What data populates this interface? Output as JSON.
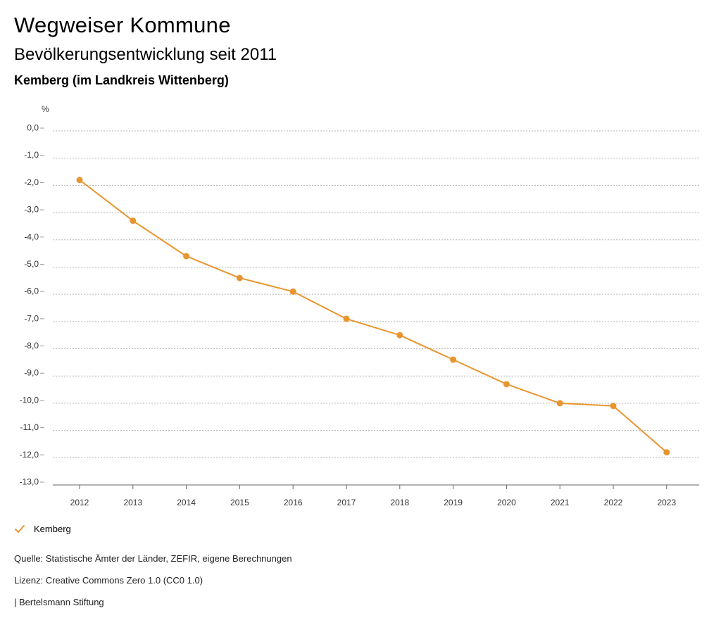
{
  "header": {
    "title": "Wegweiser Kommune",
    "subtitle": "Bevölkerungsentwicklung seit 2011",
    "region": "Kemberg (im Landkreis Wittenberg)"
  },
  "legend": {
    "items": [
      {
        "label": "Kemberg",
        "color": "#e8952f"
      }
    ]
  },
  "footer": {
    "source": "Quelle: Statistische Ämter der Länder, ZEFIR, eigene Berechnungen",
    "license": "Lizenz: Creative Commons Zero 1.0 (CC0 1.0)",
    "publisher": "| Bertelsmann Stiftung"
  },
  "chart_data": {
    "type": "line",
    "title": "",
    "xlabel": "",
    "ylabel": "%",
    "x": [
      "2012",
      "2013",
      "2014",
      "2015",
      "2016",
      "2017",
      "2018",
      "2019",
      "2020",
      "2021",
      "2022",
      "2023"
    ],
    "y_ticks": [
      "0,0",
      "-1,0",
      "-2,0",
      "-3,0",
      "-4,0",
      "-5,0",
      "-6,0",
      "-7,0",
      "-8,0",
      "-9,0",
      "-10,0",
      "-11,0",
      "-12,0",
      "-13,0"
    ],
    "ylim": [
      -13,
      0
    ],
    "grid": true,
    "legend_position": "bottom-left",
    "series": [
      {
        "name": "Kemberg",
        "color": "#e8952f",
        "values": [
          -1.8,
          -3.3,
          -4.6,
          -5.4,
          -5.9,
          -6.9,
          -7.5,
          -8.4,
          -9.3,
          -10.0,
          -10.1,
          -11.8
        ]
      }
    ]
  }
}
